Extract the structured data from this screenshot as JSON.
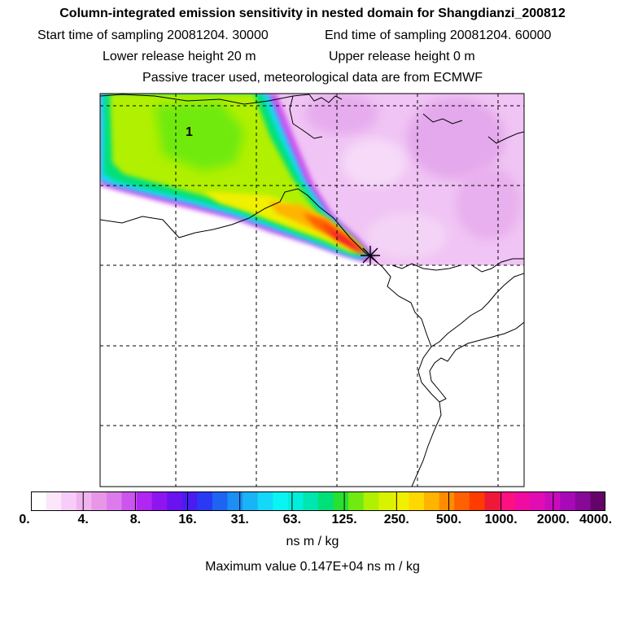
{
  "header": {
    "title": "Column-integrated emission sensitivity in nested domain for Shangdianzi_200812",
    "start_label": "Start time of sampling 20081204. 30000",
    "end_label": "End time of sampling 20081204. 60000",
    "lower_label": "Lower release height   20 m",
    "upper_label": "Upper release height    0 m",
    "tracer_note": "Passive tracer used, meteorological data are from ECMWF"
  },
  "map": {
    "contour_label": "1",
    "release_marker": "release-site-star"
  },
  "colorbar": {
    "tick_labels": [
      "0.",
      "4.",
      "8.",
      "16.",
      "31.",
      "63.",
      "125.",
      "250.",
      "500.",
      "1000.",
      "2000.",
      "4000."
    ],
    "colors": [
      "#ffffff",
      "#fce6fc",
      "#f8ccf8",
      "#f0b3f0",
      "#e897e8",
      "#dc7cec",
      "#cc55f0",
      "#b026f2",
      "#8e15f0",
      "#6a12f0",
      "#4a1cf2",
      "#2a3af4",
      "#1e64f2",
      "#1c8ef4",
      "#18b4f6",
      "#14d8f8",
      "#0af4f4",
      "#00eedc",
      "#00e6b0",
      "#00e078",
      "#28e030",
      "#70ea10",
      "#b0f000",
      "#d8f200",
      "#f0f000",
      "#ffd800",
      "#ffb400",
      "#ff8c00",
      "#ff6000",
      "#ff3c00",
      "#f01838",
      "#ff1080",
      "#f00ca0",
      "#e00cb4",
      "#c80cbc",
      "#a808b8",
      "#880898",
      "#640468"
    ],
    "units": "ns m / kg",
    "max_value_text": "Maximum value  0.147E+04 ns m / kg"
  }
}
